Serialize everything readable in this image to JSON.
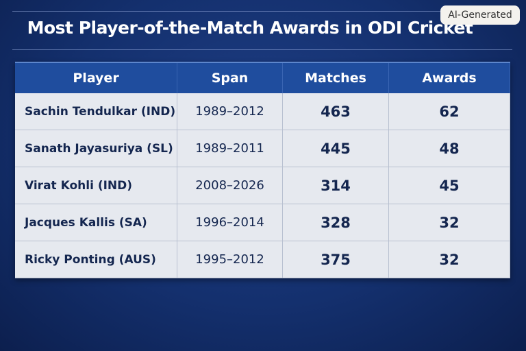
{
  "badge": "AI-Generated",
  "header": {
    "title": "Most Player-of-the-Match Awards in ODI Cricket"
  },
  "table": {
    "columns": [
      "Player",
      "Span",
      "Matches",
      "Awards"
    ],
    "rows": [
      [
        "Sachin Tendulkar (IND)",
        "1989–2012",
        463,
        62
      ],
      [
        "Sanath Jayasuriya (SL)",
        "1989–2011",
        445,
        48
      ],
      [
        "Virat Kohli (IND)",
        "2008–2026",
        314,
        45
      ],
      [
        "Jacques Kallis (SA)",
        "1996–2014",
        328,
        32
      ],
      [
        "Ricky Ponting (AUS)",
        "1995–2012",
        375,
        32
      ]
    ]
  }
}
